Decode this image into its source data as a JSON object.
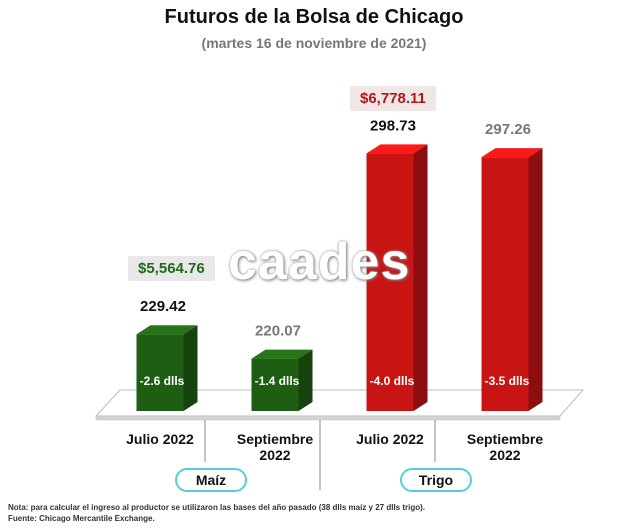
{
  "title": "Futuros de la Bolsa de Chicago",
  "subtitle": "(martes 16 de noviembre de 2021)",
  "watermark": "caades",
  "prices": {
    "maiz": "$5,564.76",
    "trigo": "$6,778.11"
  },
  "groups": [
    "Maíz",
    "Trigo"
  ],
  "notes": [
    "Nota: para calcular el ingreso al productor se utilizaron las bases del año pasado (38 dlls maíz y 27 dlls trigo).",
    "Fuente: Chicago Mercantile Exchange."
  ],
  "colors": {
    "maiz": "#1e5e12",
    "trigo": "#c91414",
    "value_dark": "#111111",
    "value_gray": "#777777"
  },
  "chart_data": {
    "type": "bar",
    "categories": [
      "Julio 2022",
      "Septiembre 2022",
      "Julio 2022",
      "Septiembre 2022"
    ],
    "category_lines": [
      [
        "Julio 2022"
      ],
      [
        "Septiembre",
        "2022"
      ],
      [
        "Julio 2022"
      ],
      [
        "Septiembre",
        "2022"
      ]
    ],
    "values": [
      229.42,
      220.07,
      298.73,
      297.26
    ],
    "value_labels": [
      "229.42",
      "220.07",
      "298.73",
      "297.26"
    ],
    "basis_labels": [
      "-2.6 dlls",
      "-1.4 dlls",
      "-4.0 dlls",
      "-3.5 dlls"
    ],
    "groups": [
      "Maíz",
      "Maíz",
      "Trigo",
      "Trigo"
    ],
    "ylim": [
      200,
      300
    ],
    "xlabel": "",
    "ylabel": "",
    "grid": false
  }
}
